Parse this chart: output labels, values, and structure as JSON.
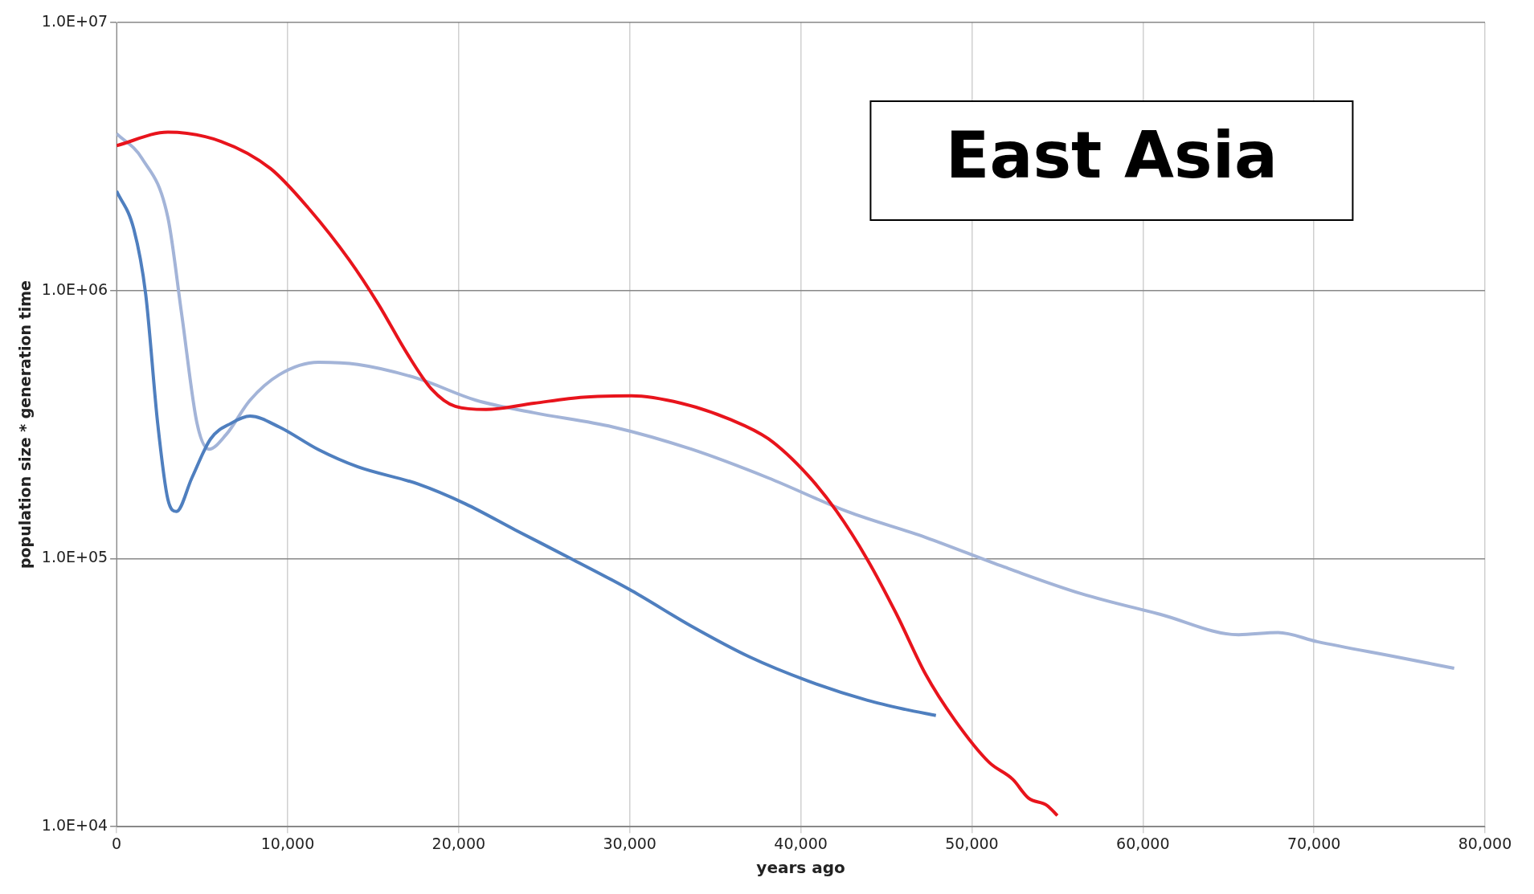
{
  "chart_data": {
    "type": "line",
    "title": "East Asia",
    "xlabel": "years ago",
    "ylabel": "population size * generation time",
    "log": "y",
    "grid": true,
    "legend": false,
    "marker": "none",
    "line_style": "solid",
    "xlim": [
      0,
      80000
    ],
    "xticks": [
      0,
      {
        "value": 10000,
        "label": "10,000"
      },
      {
        "value": 20000,
        "label": "20,000"
      },
      {
        "value": 30000,
        "label": "30,000"
      },
      {
        "value": 40000,
        "label": "40,000"
      },
      {
        "value": 50000,
        "label": "50,000"
      },
      {
        "value": 60000,
        "label": "60,000"
      },
      {
        "value": 70000,
        "label": "70,000"
      },
      {
        "value": 80000,
        "label": "80,000"
      }
    ],
    "ylim": [
      10000,
      10000000
    ],
    "yticks": [
      {
        "value": 10000,
        "label": "1.0E+04"
      },
      {
        "value": 100000,
        "label": "1.0E+05"
      },
      {
        "value": 1000000,
        "label": "1.0E+06"
      },
      {
        "value": 10000000,
        "label": "1.0E+07"
      }
    ],
    "series": [
      {
        "color": "#e8141c",
        "x": [
          0,
          3000,
          6100,
          9000,
          11300,
          13600,
          15300,
          17000,
          18400,
          19800,
          21600,
          24400,
          27300,
          30100,
          33000,
          35900,
          38100,
          40400,
          42100,
          43900,
          45600,
          47300,
          49000,
          51000,
          52400,
          53300,
          54400,
          55000
        ],
        "values": [
          3470000,
          3900000,
          3600000,
          2850000,
          2000000,
          1300000,
          890000,
          580000,
          430000,
          370000,
          360000,
          380000,
          400000,
          405000,
          380000,
          330000,
          280000,
          205000,
          150000,
          99000,
          62000,
          37000,
          25000,
          17400,
          15000,
          12800,
          12000,
          11000
        ]
      },
      {
        "color": "#4f7fbf",
        "x": [
          0,
          1000,
          1700,
          2400,
          3000,
          3500,
          4400,
          5500,
          6700,
          7800,
          9500,
          11800,
          14100,
          17600,
          20400,
          23300,
          26700,
          30100,
          33600,
          37000,
          40400,
          43900,
          46100,
          47900
        ],
        "values": [
          2350000,
          1700000,
          970000,
          320000,
          166000,
          150000,
          200000,
          280000,
          320000,
          340000,
          310000,
          255000,
          220000,
          190000,
          160000,
          128000,
          99000,
          76000,
          56000,
          43000,
          35000,
          29600,
          27400,
          26000
        ]
      },
      {
        "color": "#a3b4d8",
        "x": [
          0,
          1500,
          3000,
          3800,
          4700,
          5400,
          6400,
          7800,
          9500,
          11800,
          14100,
          17600,
          21000,
          24400,
          29000,
          33600,
          38100,
          42700,
          47300,
          51900,
          56400,
          61000,
          65600,
          67900,
          70200,
          74800,
          78200
        ],
        "values": [
          3850000,
          3100000,
          1870000,
          820000,
          320000,
          256000,
          290000,
          390000,
          485000,
          540000,
          530000,
          470000,
          390000,
          350000,
          310000,
          256000,
          200000,
          150000,
          120000,
          93000,
          74000,
          62000,
          52000,
          53000,
          49000,
          43000,
          39000
        ]
      }
    ]
  }
}
